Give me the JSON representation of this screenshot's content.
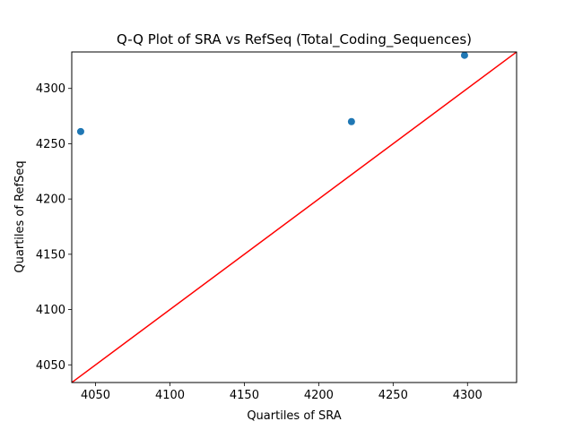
{
  "chart_data": {
    "type": "scatter",
    "title": "Q-Q Plot of SRA vs RefSeq (Total_Coding_Sequences)",
    "xlabel": "Quartiles of SRA",
    "ylabel": "Quartiles of RefSeq",
    "xlim": [
      4034,
      4333
    ],
    "ylim": [
      4034,
      4333
    ],
    "xticks": [
      4050,
      4100,
      4150,
      4200,
      4250,
      4300
    ],
    "yticks": [
      4050,
      4100,
      4150,
      4200,
      4250,
      4300
    ],
    "grid": false,
    "series": [
      {
        "type": "scatter",
        "color": "#1f77b4",
        "points": [
          {
            "x": 4040,
            "y": 4261
          },
          {
            "x": 4222,
            "y": 4270
          },
          {
            "x": 4298,
            "y": 4330
          }
        ]
      }
    ],
    "reference_line": {
      "type": "line",
      "color": "#ff0000",
      "points": [
        {
          "x": 4034,
          "y": 4034
        },
        {
          "x": 4333,
          "y": 4333
        }
      ]
    }
  }
}
